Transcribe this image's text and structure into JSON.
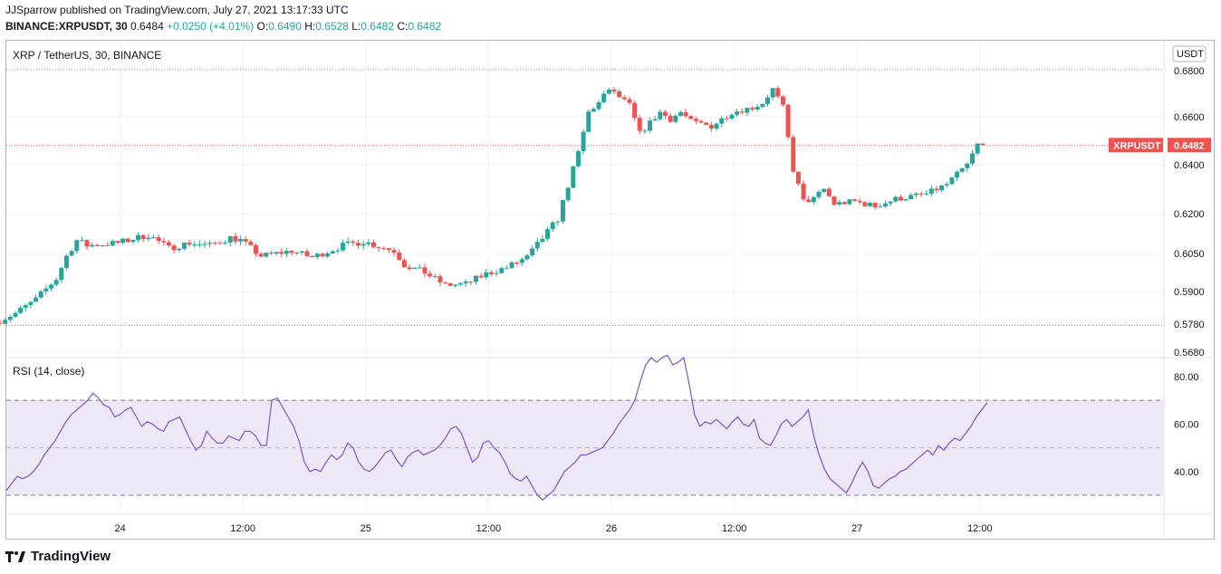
{
  "header": {
    "publisher_line": "JJSparrow published on TradingView.com, July 27, 2021 13:17:33 UTC",
    "symbol_full": "BINANCE:XRPUSDT, 30",
    "last": "0.6484",
    "change": "+0.0250 (+4.01%)",
    "o_label": "O:",
    "o": "0.6490",
    "h_label": "H:",
    "h": "0.6528",
    "l_label": "L:",
    "l": "0.6482",
    "c_label": "C:",
    "c": "0.6482"
  },
  "legend": {
    "main": "XRP / TetherUS, 30, BINANCE",
    "rsi": "RSI (14, close)"
  },
  "currency_label": "USDT",
  "price_badge": {
    "symbol": "XRPUSDT",
    "value": "0.6482",
    "color": "#ef5350"
  },
  "brand": "TradingView",
  "colors": {
    "up": "#26a69a",
    "down": "#ef5350",
    "rsi": "#7e57c2",
    "rsi_band": "#ede7f6"
  },
  "chart_data": [
    {
      "type": "candlestick",
      "title": "XRP / TetherUS, 30, BINANCE",
      "price_ticks": [
        0.68,
        0.66,
        0.64,
        0.62,
        0.605,
        0.59,
        0.578,
        0.568
      ],
      "price_tick_labels": [
        "0.6800",
        "0.6600",
        "0.6400",
        "0.6200",
        "0.6050",
        "0.5900",
        "0.5780",
        "0.5680"
      ],
      "x_tick_labels": [
        "24",
        "12:00",
        "25",
        "12:00",
        "26",
        "12:00",
        "27",
        "12:00"
      ],
      "x_ticks_hours": [
        12,
        24,
        36,
        48,
        60,
        72,
        84,
        96
      ],
      "high_line": 0.6805,
      "low_line": 0.5775,
      "last_price": 0.6482,
      "keypoints": [
        [
          0,
          0.5785
        ],
        [
          2,
          0.582
        ],
        [
          4,
          0.587
        ],
        [
          6,
          0.595
        ],
        [
          7,
          0.604
        ],
        [
          8,
          0.61
        ],
        [
          9,
          0.608
        ],
        [
          12,
          0.609
        ],
        [
          15,
          0.612
        ],
        [
          17,
          0.607
        ],
        [
          19,
          0.609
        ],
        [
          21,
          0.608
        ],
        [
          23,
          0.611
        ],
        [
          24,
          0.61
        ],
        [
          26,
          0.604
        ],
        [
          29,
          0.606
        ],
        [
          31,
          0.6035
        ],
        [
          34,
          0.608
        ],
        [
          36,
          0.6095
        ],
        [
          39,
          0.606
        ],
        [
          40,
          0.6005
        ],
        [
          42,
          0.5975
        ],
        [
          44,
          0.5925
        ],
        [
          46,
          0.593
        ],
        [
          48,
          0.597
        ],
        [
          50,
          0.5995
        ],
        [
          52,
          0.6035
        ],
        [
          55,
          0.618
        ],
        [
          57,
          0.645
        ],
        [
          58,
          0.662
        ],
        [
          59,
          0.666
        ],
        [
          60,
          0.672
        ],
        [
          62,
          0.665
        ],
        [
          63,
          0.653
        ],
        [
          65,
          0.662
        ],
        [
          66,
          0.659
        ],
        [
          67,
          0.662
        ],
        [
          68,
          0.658
        ],
        [
          70,
          0.656
        ],
        [
          72,
          0.662
        ],
        [
          74,
          0.664
        ],
        [
          75,
          0.666
        ],
        [
          76,
          0.672
        ],
        [
          77,
          0.664
        ],
        [
          78,
          0.638
        ],
        [
          79,
          0.625
        ],
        [
          80,
          0.626
        ],
        [
          81,
          0.63
        ],
        [
          82,
          0.624
        ],
        [
          84,
          0.625
        ],
        [
          86,
          0.623
        ],
        [
          88,
          0.626
        ],
        [
          91,
          0.628
        ],
        [
          93,
          0.632
        ],
        [
          95,
          0.64
        ],
        [
          96,
          0.6484
        ]
      ],
      "volatility": 0.0025,
      "bars_per_hour": 2,
      "total_hours": 96.5
    },
    {
      "type": "line",
      "title": "RSI (14, close)",
      "y_ticks": [
        80,
        60,
        40
      ],
      "y_tick_labels": [
        "80.00",
        "60.00",
        "40.00"
      ],
      "band": [
        30,
        70
      ],
      "mid": 50,
      "ylim": [
        22,
        88
      ],
      "values": [
        32,
        35,
        38,
        37,
        38,
        40,
        43,
        47,
        50,
        53,
        57,
        61,
        64,
        66,
        68,
        70,
        73,
        71,
        68,
        67,
        63,
        64,
        66,
        67,
        63,
        59,
        61,
        60,
        58,
        57,
        61,
        62,
        63,
        58,
        53,
        49,
        51,
        57,
        54,
        52,
        52,
        55,
        54,
        53,
        57,
        57,
        55,
        51,
        51,
        70,
        71,
        67,
        63,
        59,
        53,
        44,
        40,
        41,
        40,
        44,
        47,
        45,
        47,
        52,
        50,
        44,
        41,
        40,
        42,
        45,
        48,
        49,
        45,
        42,
        46,
        48,
        49,
        47,
        48,
        49,
        51,
        54,
        58,
        59,
        56,
        50,
        44,
        46,
        52,
        53,
        50,
        48,
        44,
        39,
        37,
        36,
        38,
        34,
        30,
        28,
        30,
        32,
        36,
        40,
        42,
        44,
        47,
        47,
        48,
        49,
        50,
        53,
        56,
        60,
        63,
        66,
        70,
        78,
        85,
        88,
        86,
        88,
        89,
        85,
        86,
        88,
        77,
        64,
        59,
        61,
        60,
        62,
        60,
        58,
        61,
        63,
        60,
        59,
        62,
        54,
        52,
        51,
        55,
        60,
        62,
        59,
        61,
        63,
        66,
        55,
        47,
        41,
        37,
        35,
        33,
        31,
        35,
        40,
        44,
        40,
        34,
        33,
        35,
        37,
        38,
        40,
        41,
        43,
        45,
        47,
        49,
        47,
        51,
        49,
        52,
        54,
        53,
        56,
        59,
        63,
        66,
        69
      ]
    }
  ]
}
